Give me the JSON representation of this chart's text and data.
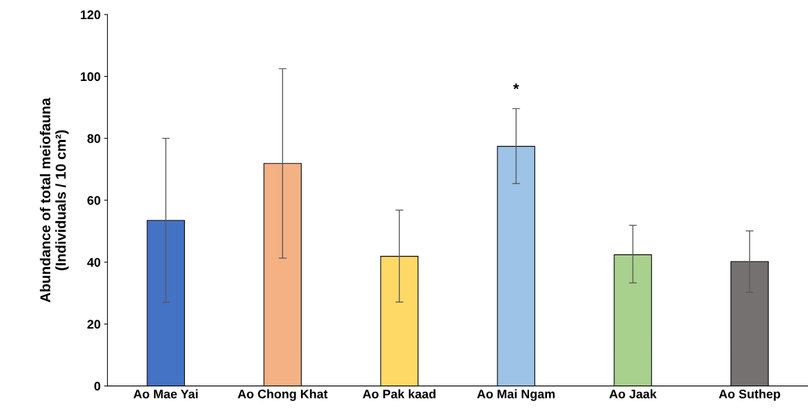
{
  "chart_data": {
    "type": "bar",
    "ylabel": "Abundance of total meiofauna\n(Individuals / 10 cm²)",
    "categories": [
      "Ao Mae Yai",
      "Ao Chong Khat",
      "Ao Pak kaad",
      "Ao Mai Ngam",
      "Ao Jaak",
      "Ao Suthep"
    ],
    "values": [
      53.5,
      71.9,
      41.9,
      77.4,
      42.4,
      40.2
    ],
    "errors": [
      [
        27,
        80
      ],
      [
        41.3,
        102.5
      ],
      [
        27.1,
        56.8
      ],
      [
        65.4,
        89.6
      ],
      [
        33.3,
        51.9
      ],
      [
        30.2,
        50.1
      ]
    ],
    "colors": [
      "#4472c4",
      "#f4b183",
      "#ffd966",
      "#9dc3e6",
      "#a9d18e",
      "#767171"
    ],
    "ylim": [
      0,
      120
    ],
    "yticks": [
      0,
      20,
      40,
      60,
      80,
      100,
      120
    ],
    "annotations": [
      {
        "text": "*",
        "x": "Ao Mai Ngam",
        "y": 89.6
      }
    ],
    "grid": false,
    "legend": false
  }
}
